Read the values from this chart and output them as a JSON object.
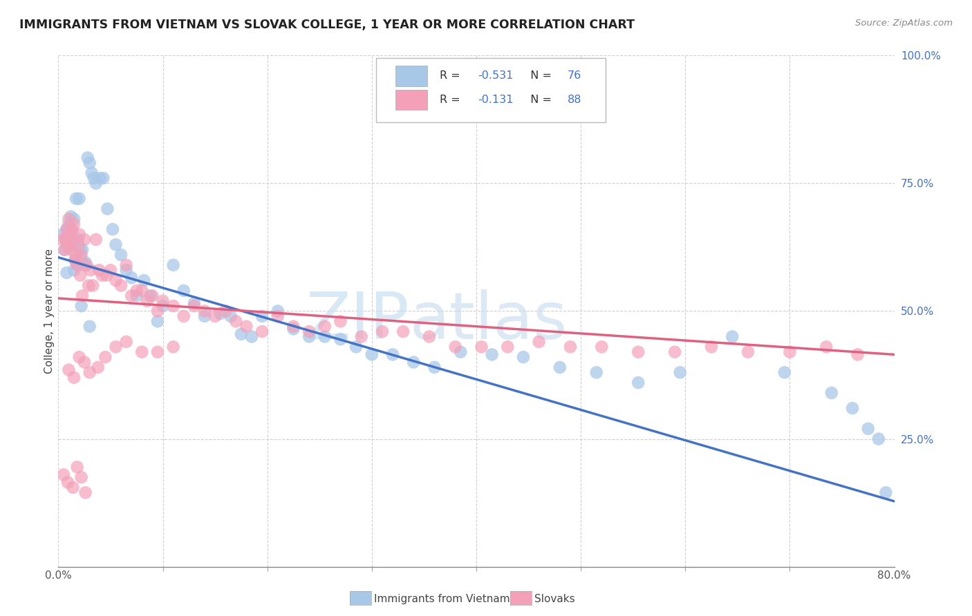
{
  "title": "IMMIGRANTS FROM VIETNAM VS SLOVAK COLLEGE, 1 YEAR OR MORE CORRELATION CHART",
  "source": "Source: ZipAtlas.com",
  "ylabel": "College, 1 year or more",
  "xlim": [
    0.0,
    0.8
  ],
  "ylim": [
    0.0,
    1.0
  ],
  "watermark_text": "ZIPatlas",
  "legend_label1": "Immigrants from Vietnam",
  "legend_label2": "Slovaks",
  "R1": -0.531,
  "N1": 76,
  "R2": -0.131,
  "N2": 88,
  "color1": "#a8c8e8",
  "color2": "#f4a0b8",
  "line_color1": "#4472c4",
  "line_color2": "#e06080",
  "background": "#ffffff",
  "grid_color": "#d0d0d0",
  "vietnam_line_y0": 0.605,
  "vietnam_line_y1": 0.128,
  "slovak_line_y0": 0.525,
  "slovak_line_y1": 0.415,
  "vietnam_x": [
    0.004,
    0.006,
    0.007,
    0.008,
    0.009,
    0.01,
    0.011,
    0.012,
    0.013,
    0.014,
    0.015,
    0.016,
    0.017,
    0.018,
    0.019,
    0.02,
    0.021,
    0.022,
    0.023,
    0.025,
    0.026,
    0.028,
    0.03,
    0.032,
    0.034,
    0.036,
    0.04,
    0.043,
    0.047,
    0.052,
    0.055,
    0.06,
    0.065,
    0.07,
    0.075,
    0.082,
    0.088,
    0.095,
    0.1,
    0.11,
    0.12,
    0.13,
    0.14,
    0.155,
    0.165,
    0.175,
    0.185,
    0.195,
    0.21,
    0.225,
    0.24,
    0.255,
    0.27,
    0.285,
    0.3,
    0.32,
    0.34,
    0.36,
    0.385,
    0.415,
    0.445,
    0.48,
    0.515,
    0.555,
    0.595,
    0.645,
    0.695,
    0.74,
    0.76,
    0.775,
    0.785,
    0.792,
    0.008,
    0.015,
    0.022,
    0.03
  ],
  "vietnam_y": [
    0.65,
    0.62,
    0.64,
    0.66,
    0.625,
    0.67,
    0.66,
    0.685,
    0.655,
    0.63,
    0.68,
    0.6,
    0.72,
    0.59,
    0.64,
    0.72,
    0.62,
    0.6,
    0.62,
    0.59,
    0.595,
    0.8,
    0.79,
    0.77,
    0.76,
    0.75,
    0.76,
    0.76,
    0.7,
    0.66,
    0.63,
    0.61,
    0.58,
    0.565,
    0.53,
    0.56,
    0.53,
    0.48,
    0.51,
    0.59,
    0.54,
    0.515,
    0.49,
    0.495,
    0.49,
    0.455,
    0.45,
    0.49,
    0.5,
    0.465,
    0.45,
    0.45,
    0.445,
    0.43,
    0.415,
    0.415,
    0.4,
    0.39,
    0.42,
    0.415,
    0.41,
    0.39,
    0.38,
    0.36,
    0.38,
    0.45,
    0.38,
    0.34,
    0.31,
    0.27,
    0.25,
    0.145,
    0.575,
    0.58,
    0.51,
    0.47
  ],
  "slovak_x": [
    0.004,
    0.006,
    0.007,
    0.008,
    0.009,
    0.01,
    0.011,
    0.012,
    0.013,
    0.014,
    0.015,
    0.016,
    0.017,
    0.018,
    0.019,
    0.02,
    0.021,
    0.022,
    0.023,
    0.025,
    0.027,
    0.029,
    0.031,
    0.033,
    0.036,
    0.039,
    0.042,
    0.046,
    0.05,
    0.055,
    0.06,
    0.065,
    0.07,
    0.075,
    0.08,
    0.085,
    0.09,
    0.095,
    0.1,
    0.11,
    0.12,
    0.13,
    0.14,
    0.15,
    0.16,
    0.17,
    0.18,
    0.195,
    0.21,
    0.225,
    0.24,
    0.255,
    0.27,
    0.29,
    0.31,
    0.33,
    0.355,
    0.38,
    0.405,
    0.43,
    0.46,
    0.49,
    0.52,
    0.555,
    0.59,
    0.625,
    0.66,
    0.7,
    0.735,
    0.765,
    0.005,
    0.009,
    0.014,
    0.018,
    0.022,
    0.026,
    0.01,
    0.015,
    0.02,
    0.025,
    0.03,
    0.038,
    0.045,
    0.055,
    0.065,
    0.08,
    0.095,
    0.11
  ],
  "slovak_y": [
    0.64,
    0.62,
    0.64,
    0.66,
    0.63,
    0.68,
    0.65,
    0.62,
    0.66,
    0.64,
    0.67,
    0.6,
    0.61,
    0.59,
    0.63,
    0.65,
    0.57,
    0.61,
    0.53,
    0.64,
    0.59,
    0.55,
    0.58,
    0.55,
    0.64,
    0.58,
    0.57,
    0.57,
    0.58,
    0.56,
    0.55,
    0.59,
    0.53,
    0.54,
    0.54,
    0.52,
    0.53,
    0.5,
    0.52,
    0.51,
    0.49,
    0.51,
    0.5,
    0.49,
    0.5,
    0.48,
    0.47,
    0.46,
    0.49,
    0.47,
    0.46,
    0.47,
    0.48,
    0.45,
    0.46,
    0.46,
    0.45,
    0.43,
    0.43,
    0.43,
    0.44,
    0.43,
    0.43,
    0.42,
    0.42,
    0.43,
    0.42,
    0.42,
    0.43,
    0.415,
    0.18,
    0.165,
    0.155,
    0.195,
    0.175,
    0.145,
    0.385,
    0.37,
    0.41,
    0.4,
    0.38,
    0.39,
    0.41,
    0.43,
    0.44,
    0.42,
    0.42,
    0.43
  ]
}
